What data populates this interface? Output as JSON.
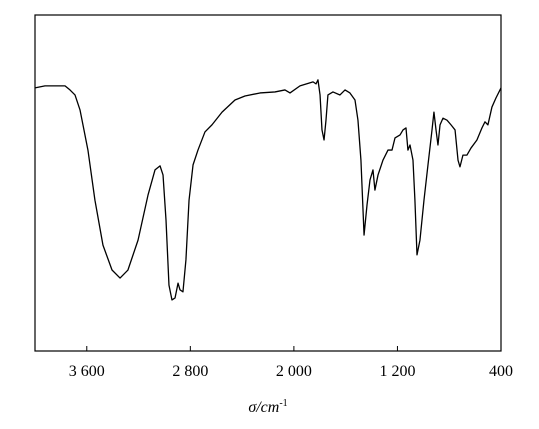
{
  "chart_data": {
    "type": "line",
    "xlabel": {
      "text": "σ/cm",
      "superscript": "-1"
    },
    "xlim": [
      4000,
      400
    ],
    "xticks": [
      {
        "value": 3600,
        "label": "3 600"
      },
      {
        "value": 2800,
        "label": "2 800"
      },
      {
        "value": 2000,
        "label": "2 000"
      },
      {
        "value": 1200,
        "label": "1 200"
      },
      400
    ],
    "ylim": [
      0,
      100
    ],
    "x": [
      4000,
      3923,
      3768,
      3730,
      3691,
      3652,
      3591,
      3537,
      3475,
      3405,
      3343,
      3282,
      3204,
      3127,
      3073,
      3034,
      3011,
      2988,
      2965,
      2942,
      2918,
      2895,
      2880,
      2857,
      2834,
      2810,
      2779,
      2741,
      2687,
      2633,
      2555,
      2455,
      2378,
      2262,
      2146,
      2069,
      2030,
      1953,
      1852,
      1829,
      1814,
      1798,
      1783,
      1767,
      1752,
      1737,
      1698,
      1644,
      1605,
      1567,
      1528,
      1505,
      1482,
      1458,
      1435,
      1412,
      1389,
      1374,
      1350,
      1312,
      1273,
      1242,
      1219,
      1180,
      1157,
      1134,
      1119,
      1103,
      1080,
      1065,
      1049,
      1026,
      995,
      964,
      933,
      918,
      902,
      887,
      871,
      848,
      817,
      786,
      755,
      732,
      717,
      694,
      663,
      632,
      586,
      547,
      524,
      501,
      470,
      439,
      400
    ],
    "series": [
      {
        "color": "#000000",
        "values": [
          78.3,
          78.9,
          78.9,
          77.7,
          76.2,
          71.7,
          59.8,
          44.9,
          31.5,
          24.1,
          21.7,
          24.1,
          33.0,
          46.4,
          53.9,
          55.1,
          52.4,
          39.0,
          19.6,
          15.2,
          15.8,
          20.2,
          18.2,
          17.6,
          27.1,
          44.9,
          55.4,
          59.8,
          65.2,
          67.3,
          71.1,
          74.7,
          75.9,
          76.8,
          77.1,
          77.7,
          76.8,
          78.9,
          80.1,
          79.5,
          80.7,
          76.2,
          65.8,
          62.8,
          68.7,
          76.2,
          77.1,
          76.2,
          77.7,
          76.8,
          74.7,
          68.7,
          56.8,
          34.5,
          43.5,
          50.9,
          53.9,
          47.9,
          52.4,
          56.8,
          59.8,
          59.8,
          63.4,
          64.3,
          65.8,
          66.4,
          59.8,
          61.3,
          56.8,
          44.9,
          28.6,
          33.0,
          44.9,
          55.4,
          65.8,
          71.1,
          65.8,
          61.3,
          67.3,
          69.3,
          68.7,
          67.3,
          65.8,
          56.8,
          54.8,
          58.3,
          58.3,
          60.4,
          62.8,
          66.4,
          68.2,
          67.3,
          72.6,
          75.3,
          78.3
        ]
      }
    ]
  }
}
